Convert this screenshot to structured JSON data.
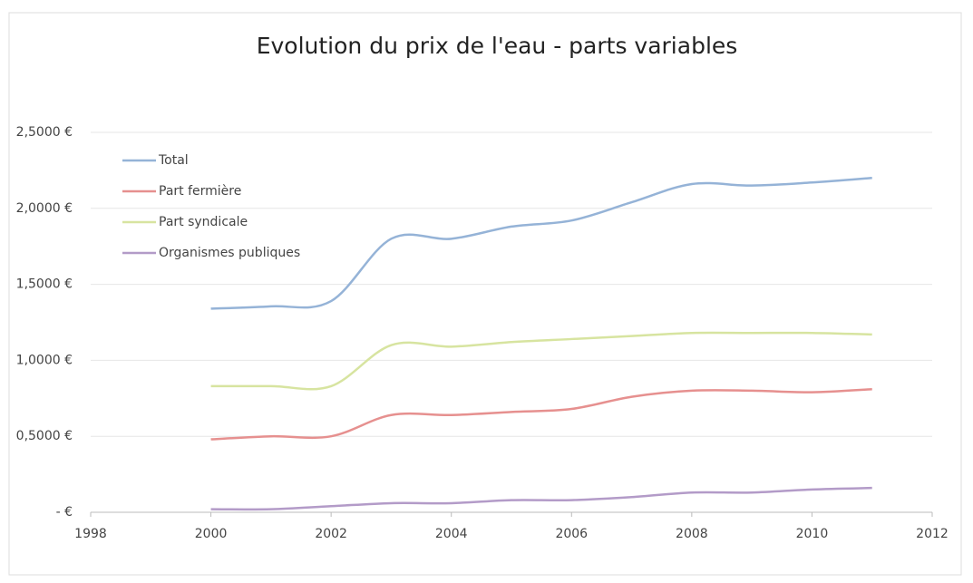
{
  "chart_data": {
    "type": "line",
    "title": "Evolution du prix de l'eau - parts variables",
    "x": [
      2000,
      2001,
      2002,
      2003,
      2004,
      2005,
      2006,
      2007,
      2008,
      2009,
      2010,
      2011
    ],
    "series": [
      {
        "name": "Total",
        "color": "#95b3d7",
        "values": [
          1.34,
          1.355,
          1.39,
          1.8,
          1.8,
          1.88,
          1.92,
          2.04,
          2.16,
          2.15,
          2.17,
          2.2
        ]
      },
      {
        "name": "Part fermière",
        "color": "#e6908f",
        "values": [
          0.48,
          0.5,
          0.5,
          0.64,
          0.64,
          0.66,
          0.68,
          0.76,
          0.8,
          0.8,
          0.79,
          0.81
        ]
      },
      {
        "name": "Part syndicale",
        "color": "#d7e4a0",
        "values": [
          0.83,
          0.83,
          0.83,
          1.1,
          1.09,
          1.12,
          1.14,
          1.16,
          1.18,
          1.18,
          1.18,
          1.17
        ]
      },
      {
        "name": "Organismes publiques",
        "color": "#b39bc8",
        "values": [
          0.02,
          0.02,
          0.04,
          0.06,
          0.06,
          0.08,
          0.08,
          0.1,
          0.13,
          0.13,
          0.15,
          0.16
        ]
      }
    ],
    "xlim": [
      1998,
      2012
    ],
    "xticks": [
      1998,
      2000,
      2002,
      2004,
      2006,
      2008,
      2010,
      2012
    ],
    "ylim": [
      0,
      2.5
    ],
    "yticks": [
      {
        "value": 0,
        "label": " -   €"
      },
      {
        "value": 0.5,
        "label": "0,5000 €"
      },
      {
        "value": 1,
        "label": "1,0000 €"
      },
      {
        "value": 1.5,
        "label": "1,5000 €"
      },
      {
        "value": 2,
        "label": "2,0000 €"
      },
      {
        "value": 2.5,
        "label": "2,5000 €"
      }
    ],
    "grid": true,
    "legend": "top-left",
    "smooth": true
  }
}
